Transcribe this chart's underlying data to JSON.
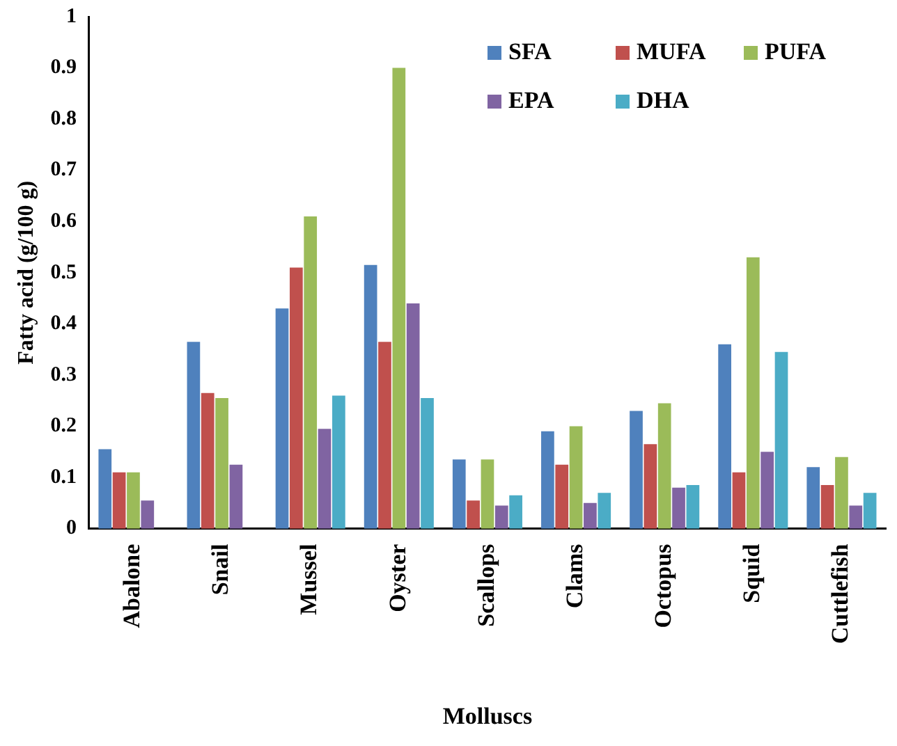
{
  "chart_data": {
    "type": "bar",
    "xlabel": "Molluscs",
    "ylabel": "Fatty acid (g/100 g)",
    "categories": [
      "Abalone",
      "Snail",
      "Mussel",
      "Oyster",
      "Scallops",
      "Clams",
      "Octopus",
      "Squid",
      "Cuttlefish"
    ],
    "series": [
      {
        "name": "SFA",
        "color": "#4f81bd",
        "values": [
          0.155,
          0.365,
          0.43,
          0.515,
          0.135,
          0.19,
          0.23,
          0.36,
          0.12
        ]
      },
      {
        "name": "MUFA",
        "color": "#c0504d",
        "values": [
          0.11,
          0.265,
          0.51,
          0.365,
          0.055,
          0.125,
          0.165,
          0.11,
          0.085
        ]
      },
      {
        "name": "PUFA",
        "color": "#9bbb59",
        "values": [
          0.11,
          0.255,
          0.61,
          0.9,
          0.135,
          0.2,
          0.245,
          0.53,
          0.14
        ]
      },
      {
        "name": "EPA",
        "color": "#8064a2",
        "values": [
          0.055,
          0.125,
          0.195,
          0.44,
          0.045,
          0.05,
          0.08,
          0.15,
          0.045
        ]
      },
      {
        "name": "DHA",
        "color": "#4bacc6",
        "values": [
          0,
          0,
          0.26,
          0.255,
          0.065,
          0.07,
          0.085,
          0.345,
          0.07
        ]
      }
    ],
    "ylim": [
      0,
      1
    ],
    "yticks": [
      0,
      0.1,
      0.2,
      0.3,
      0.4,
      0.5,
      0.6,
      0.7,
      0.8,
      0.9,
      1
    ],
    "grid": false,
    "legend": "top right"
  }
}
